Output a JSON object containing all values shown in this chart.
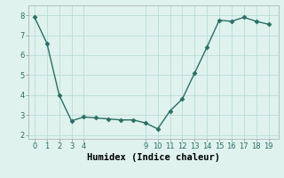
{
  "x": [
    0,
    1,
    2,
    3,
    4,
    5,
    6,
    7,
    8,
    9,
    10,
    11,
    12,
    13,
    14,
    15,
    16,
    17,
    18,
    19
  ],
  "y": [
    7.9,
    6.6,
    4.0,
    2.7,
    2.9,
    2.85,
    2.8,
    2.75,
    2.75,
    2.6,
    2.3,
    3.2,
    3.8,
    5.1,
    6.4,
    7.75,
    7.7,
    7.9,
    7.7,
    7.55
  ],
  "line_color": "#2a6e65",
  "marker": "D",
  "marker_size": 2.5,
  "bg_color": "#dff2ee",
  "grid_color": "#b8ddd6",
  "xlabel": "Humidex (Indice chaleur)",
  "ylim": [
    1.8,
    8.5
  ],
  "xlim": [
    -0.5,
    19.8
  ],
  "yticks": [
    2,
    3,
    4,
    5,
    6,
    7,
    8
  ],
  "xticks": [
    0,
    1,
    2,
    3,
    4,
    9,
    10,
    11,
    12,
    13,
    14,
    15,
    16,
    17,
    18,
    19
  ],
  "label_fontsize": 7.5,
  "tick_fontsize": 6.0
}
